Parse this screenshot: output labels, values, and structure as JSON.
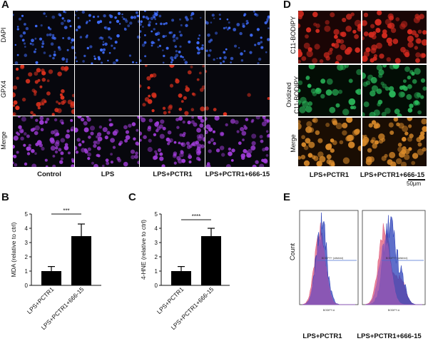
{
  "panels": {
    "A": {
      "letter": "A",
      "row_labels": [
        "DAPI",
        "GPX4",
        "Merge"
      ],
      "col_labels": [
        "Control",
        "LPS",
        "LPS+PCTR1",
        "LPS+PCTR1+666-15"
      ],
      "colors": {
        "dapi": "#3f6dff",
        "gpx4": "#e0321e",
        "merge": "#a03cd8"
      }
    },
    "D": {
      "letter": "D",
      "row_labels": [
        "C11-BODIPY",
        "Oxidized\nC11-BODIPY",
        "Merge"
      ],
      "col_labels": [
        "LPS+PCTR1",
        "LPS+PCTR1+666-15"
      ],
      "scale_bar": "50μm",
      "colors": {
        "red": "#d42a1f",
        "green": "#2ab85a",
        "merge": "#d98a2a"
      }
    },
    "B": {
      "letter": "B"
    },
    "C": {
      "letter": "C"
    },
    "E": {
      "letter": "E",
      "ylabel": "Count",
      "xlabel": "BODIPY-A",
      "gate_label": "BODIPY+ (stitched)",
      "sample_labels": [
        "LPS+PCTR1",
        "LPS+PCTR1+666-15"
      ]
    }
  },
  "chart_data": [
    {
      "type": "bar",
      "categories": [
        "LPS+PCTR1",
        "LPS+PCTR1+666-15"
      ],
      "values": [
        1.0,
        3.45
      ],
      "errors": [
        0.32,
        0.85
      ],
      "ylabel": "MDA (relative to ctrl)",
      "ylim": [
        0,
        5
      ],
      "yticks": [
        "0",
        "1",
        "2",
        "3",
        "4",
        "5"
      ],
      "significance": "***"
    },
    {
      "type": "bar",
      "categories": [
        "LPS+PCTR1",
        "LPS+PCTR1+666-15"
      ],
      "values": [
        1.0,
        3.45
      ],
      "errors": [
        0.32,
        0.55
      ],
      "ylabel": "4-HNE (relative to ctrl)",
      "ylim": [
        0,
        5
      ],
      "yticks": [
        "0",
        "1",
        "2",
        "3",
        "4",
        "5"
      ],
      "significance": "****"
    }
  ]
}
